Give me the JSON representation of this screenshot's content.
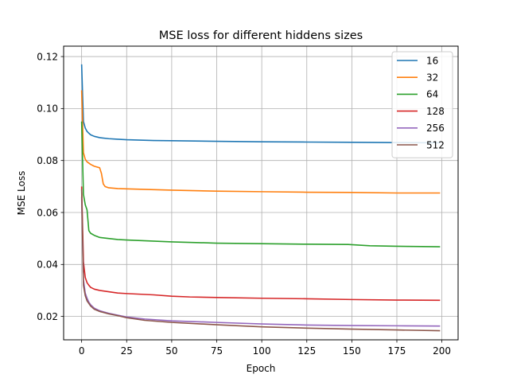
{
  "chart_data": {
    "type": "line",
    "title": "MSE loss for different hiddens sizes",
    "xlabel": "Epoch",
    "ylabel": "MSE Loss",
    "xlim": [
      -10,
      209
    ],
    "ylim": [
      0.011,
      0.124
    ],
    "xticks": [
      0,
      25,
      50,
      75,
      100,
      125,
      150,
      175,
      200
    ],
    "yticks": [
      0.02,
      0.04,
      0.06,
      0.08,
      0.1,
      0.12
    ],
    "ytick_labels": [
      "0.02",
      "0.04",
      "0.06",
      "0.08",
      "0.10",
      "0.12"
    ],
    "grid": true,
    "legend_position": "top-right",
    "series": [
      {
        "name": "16",
        "color": "#1f77b4",
        "points": [
          [
            0,
            0.117
          ],
          [
            1,
            0.095
          ],
          [
            2,
            0.0925
          ],
          [
            3,
            0.0912
          ],
          [
            4,
            0.0905
          ],
          [
            5,
            0.0899
          ],
          [
            7,
            0.0893
          ],
          [
            10,
            0.0888
          ],
          [
            15,
            0.0884
          ],
          [
            20,
            0.0882
          ],
          [
            25,
            0.088
          ],
          [
            40,
            0.0877
          ],
          [
            50,
            0.0876
          ],
          [
            75,
            0.0874
          ],
          [
            100,
            0.0872
          ],
          [
            125,
            0.0871
          ],
          [
            150,
            0.087
          ],
          [
            175,
            0.0869
          ],
          [
            199,
            0.0868
          ]
        ]
      },
      {
        "name": "32",
        "color": "#ff7f0e",
        "points": [
          [
            0,
            0.107
          ],
          [
            1,
            0.083
          ],
          [
            2,
            0.0805
          ],
          [
            3,
            0.0795
          ],
          [
            5,
            0.0785
          ],
          [
            7,
            0.0778
          ],
          [
            10,
            0.0772
          ],
          [
            11,
            0.075
          ],
          [
            12,
            0.071
          ],
          [
            13,
            0.07
          ],
          [
            15,
            0.0695
          ],
          [
            20,
            0.0692
          ],
          [
            25,
            0.0691
          ],
          [
            50,
            0.0686
          ],
          [
            75,
            0.0682
          ],
          [
            100,
            0.068
          ],
          [
            125,
            0.0678
          ],
          [
            150,
            0.0677
          ],
          [
            175,
            0.0675
          ],
          [
            199,
            0.0675
          ]
        ]
      },
      {
        "name": "64",
        "color": "#2ca02c",
        "points": [
          [
            0,
            0.095
          ],
          [
            1,
            0.067
          ],
          [
            2,
            0.063
          ],
          [
            3,
            0.061
          ],
          [
            4,
            0.053
          ],
          [
            5,
            0.052
          ],
          [
            7,
            0.0512
          ],
          [
            10,
            0.0504
          ],
          [
            15,
            0.05
          ],
          [
            20,
            0.0496
          ],
          [
            25,
            0.0494
          ],
          [
            50,
            0.0487
          ],
          [
            75,
            0.0482
          ],
          [
            100,
            0.048
          ],
          [
            125,
            0.0478
          ],
          [
            148,
            0.0477
          ],
          [
            160,
            0.0472
          ],
          [
            175,
            0.047
          ],
          [
            199,
            0.0468
          ]
        ]
      },
      {
        "name": "128",
        "color": "#d62728",
        "points": [
          [
            0,
            0.07
          ],
          [
            1,
            0.041
          ],
          [
            2,
            0.035
          ],
          [
            3,
            0.033
          ],
          [
            4,
            0.032
          ],
          [
            5,
            0.0312
          ],
          [
            7,
            0.0305
          ],
          [
            10,
            0.03
          ],
          [
            15,
            0.0295
          ],
          [
            20,
            0.029
          ],
          [
            25,
            0.0288
          ],
          [
            40,
            0.0283
          ],
          [
            50,
            0.0278
          ],
          [
            60,
            0.0275
          ],
          [
            75,
            0.0273
          ],
          [
            100,
            0.027
          ],
          [
            125,
            0.0268
          ],
          [
            150,
            0.0265
          ],
          [
            175,
            0.0263
          ],
          [
            199,
            0.0262
          ]
        ]
      },
      {
        "name": "256",
        "color": "#9467bd",
        "points": [
          [
            0,
            0.066
          ],
          [
            1,
            0.034
          ],
          [
            2,
            0.029
          ],
          [
            3,
            0.027
          ],
          [
            4,
            0.0255
          ],
          [
            5,
            0.0245
          ],
          [
            7,
            0.0232
          ],
          [
            10,
            0.0222
          ],
          [
            15,
            0.0212
          ],
          [
            20,
            0.0205
          ],
          [
            25,
            0.0198
          ],
          [
            35,
            0.019
          ],
          [
            50,
            0.0183
          ],
          [
            75,
            0.0177
          ],
          [
            100,
            0.0171
          ],
          [
            125,
            0.0167
          ],
          [
            150,
            0.0165
          ],
          [
            175,
            0.0164
          ],
          [
            199,
            0.0163
          ]
        ]
      },
      {
        "name": "512",
        "color": "#8c564b",
        "points": [
          [
            0,
            0.069
          ],
          [
            1,
            0.032
          ],
          [
            2,
            0.028
          ],
          [
            3,
            0.026
          ],
          [
            4,
            0.025
          ],
          [
            5,
            0.024
          ],
          [
            7,
            0.0228
          ],
          [
            10,
            0.0219
          ],
          [
            15,
            0.021
          ],
          [
            20,
            0.0203
          ],
          [
            25,
            0.0195
          ],
          [
            35,
            0.0185
          ],
          [
            50,
            0.0177
          ],
          [
            75,
            0.0168
          ],
          [
            100,
            0.016
          ],
          [
            125,
            0.0155
          ],
          [
            150,
            0.0151
          ],
          [
            175,
            0.0148
          ],
          [
            199,
            0.0145
          ]
        ]
      }
    ]
  }
}
